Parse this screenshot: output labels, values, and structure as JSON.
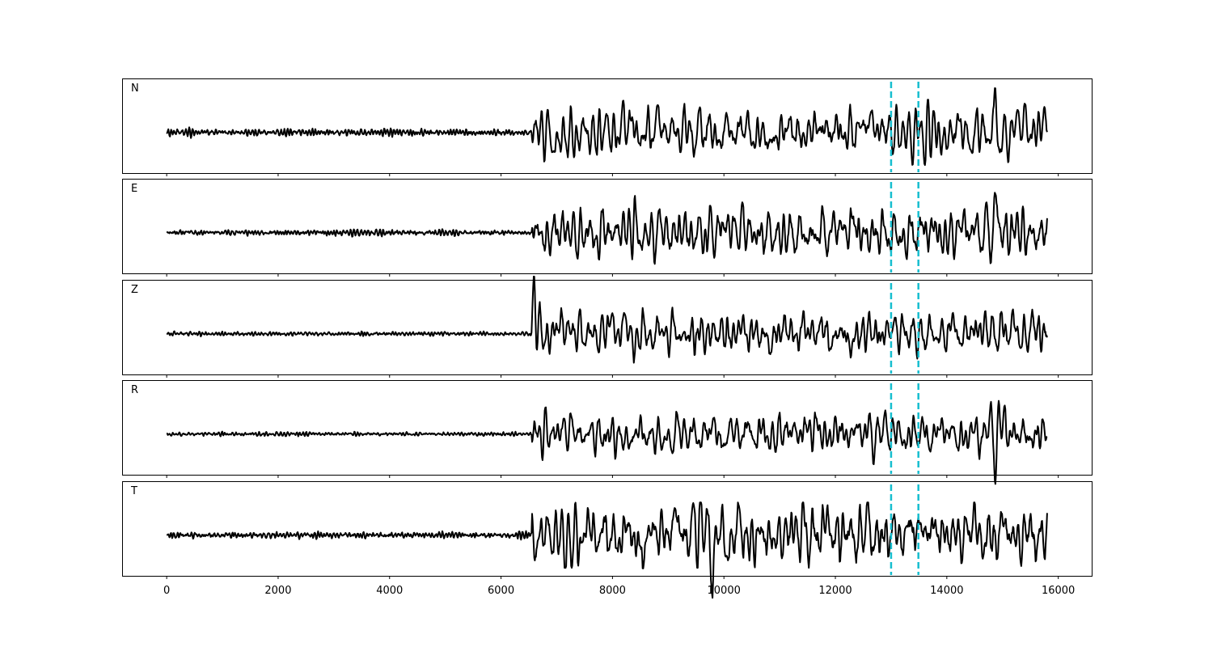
{
  "chart_data": {
    "type": "line",
    "layout": "5 stacked panels sharing the x axis",
    "x_range": [
      -800,
      16600
    ],
    "x_ticks": [
      0,
      2000,
      4000,
      6000,
      8000,
      10000,
      12000,
      14000,
      16000
    ],
    "x_tick_labels": [
      "0",
      "2000",
      "4000",
      "6000",
      "8000",
      "10000",
      "12000",
      "14000",
      "16000"
    ],
    "x_end": 15800,
    "y_axis_shown": false,
    "grid": false,
    "trace_color": "#000000",
    "marker_color": "#17becf",
    "markers": [
      13000,
      13490
    ],
    "onset_x": 6550,
    "panels": [
      {
        "label": "N",
        "noise_amplitude": 0.08,
        "signal_amplitude": 0.45,
        "spikes": [
          {
            "x": 14870,
            "value": 0.95
          },
          {
            "x": 14930,
            "value": -0.65
          },
          {
            "x": 15760,
            "value": 0.55
          }
        ]
      },
      {
        "label": "E",
        "noise_amplitude": 0.07,
        "signal_amplitude": 0.5,
        "spikes": [
          {
            "x": 8400,
            "value": 0.7
          },
          {
            "x": 14870,
            "value": 1.0
          },
          {
            "x": 14810,
            "value": -0.6
          }
        ]
      },
      {
        "label": "Z",
        "noise_amplitude": 0.05,
        "signal_amplitude": 0.42,
        "spikes": [
          {
            "x": 6590,
            "value": 1.1
          },
          {
            "x": 6570,
            "value": -0.35
          }
        ]
      },
      {
        "label": "R",
        "noise_amplitude": 0.05,
        "signal_amplitude": 0.4,
        "spikes": [
          {
            "x": 14770,
            "value": 0.6
          },
          {
            "x": 14870,
            "value": -1.0
          },
          {
            "x": 14930,
            "value": 0.65
          }
        ]
      },
      {
        "label": "T",
        "noise_amplitude": 0.08,
        "signal_amplitude": 0.6,
        "spikes": [
          {
            "x": 8550,
            "value": -0.8
          },
          {
            "x": 8900,
            "value": 0.85
          },
          {
            "x": 9800,
            "value": -0.7
          }
        ]
      }
    ]
  }
}
